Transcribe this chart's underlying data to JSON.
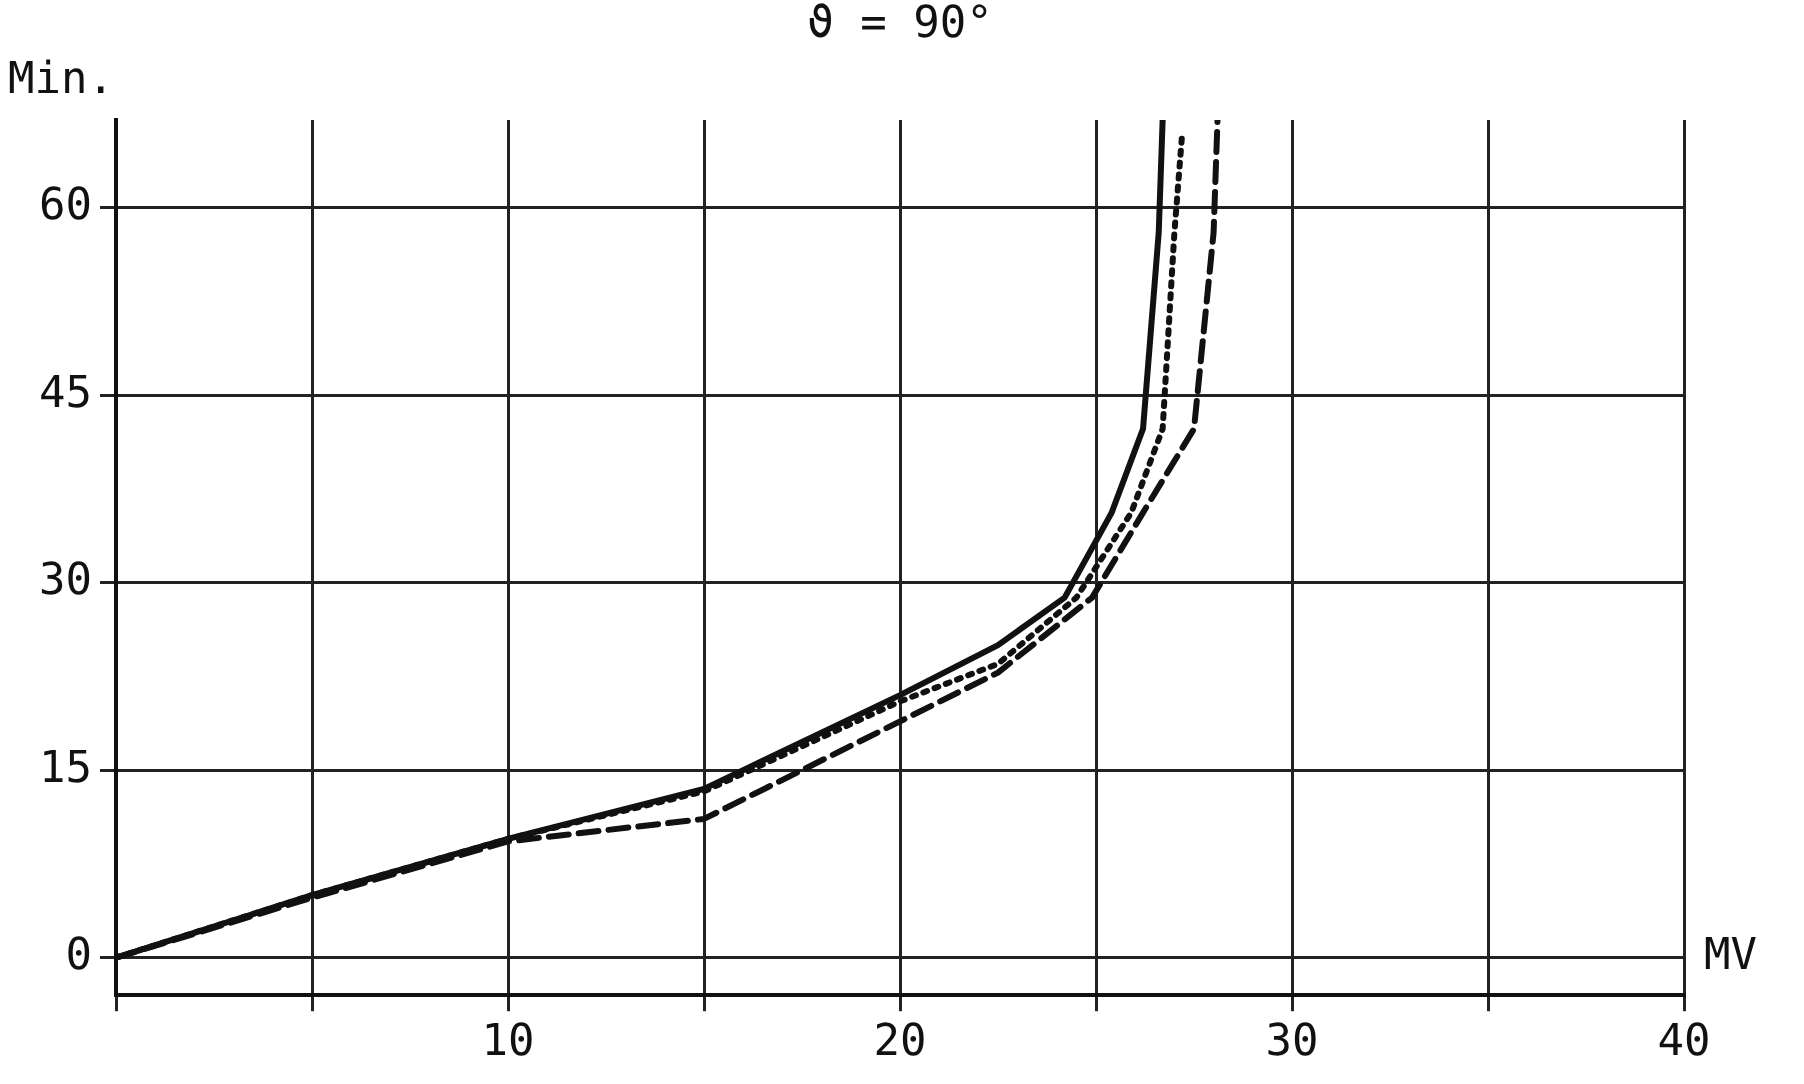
{
  "chart_data": {
    "type": "line",
    "title": "ϑ = 90°",
    "ylabel": "Min.",
    "xlabel": "MV",
    "xlim": [
      0,
      40
    ],
    "xticks": [
      {
        "value": 0,
        "label": null
      },
      {
        "value": 5,
        "label": null
      },
      10,
      {
        "value": 15,
        "label": null
      },
      20,
      {
        "value": 25,
        "label": null
      },
      30,
      {
        "value": 35,
        "label": null
      },
      40
    ],
    "ylim": [
      -3,
      67
    ],
    "yticks": [
      0,
      15,
      30,
      45,
      60
    ],
    "grid": true,
    "legend": false,
    "marker": "none",
    "series": [
      {
        "color": "#111111",
        "line_style": "solid",
        "x": [
          0,
          5,
          10,
          15,
          20,
          22.5,
          24.2,
          25.4,
          26.2,
          26.6,
          26.7
        ],
        "values": [
          0,
          5,
          9.5,
          13.5,
          21,
          25,
          28.8,
          35.6,
          42.3,
          58,
          67
        ]
      },
      {
        "color": "#111111",
        "line_style": "dotted",
        "x": [
          0,
          5,
          10,
          15,
          20,
          22.5,
          24.5,
          25.9,
          26.7,
          27,
          27.2
        ],
        "values": [
          0,
          5,
          9.5,
          13.3,
          20.5,
          23.5,
          28.8,
          35.6,
          42.3,
          58,
          66
        ]
      },
      {
        "color": "#111111",
        "line_style": "dashed",
        "x": [
          0,
          5,
          10,
          15,
          20,
          22.5,
          24.9,
          26.2,
          27.5,
          28,
          28.1
        ],
        "values": [
          0,
          4.8,
          9.3,
          11.1,
          18.9,
          22.8,
          28.8,
          35.6,
          42.3,
          58,
          67
        ]
      }
    ]
  }
}
